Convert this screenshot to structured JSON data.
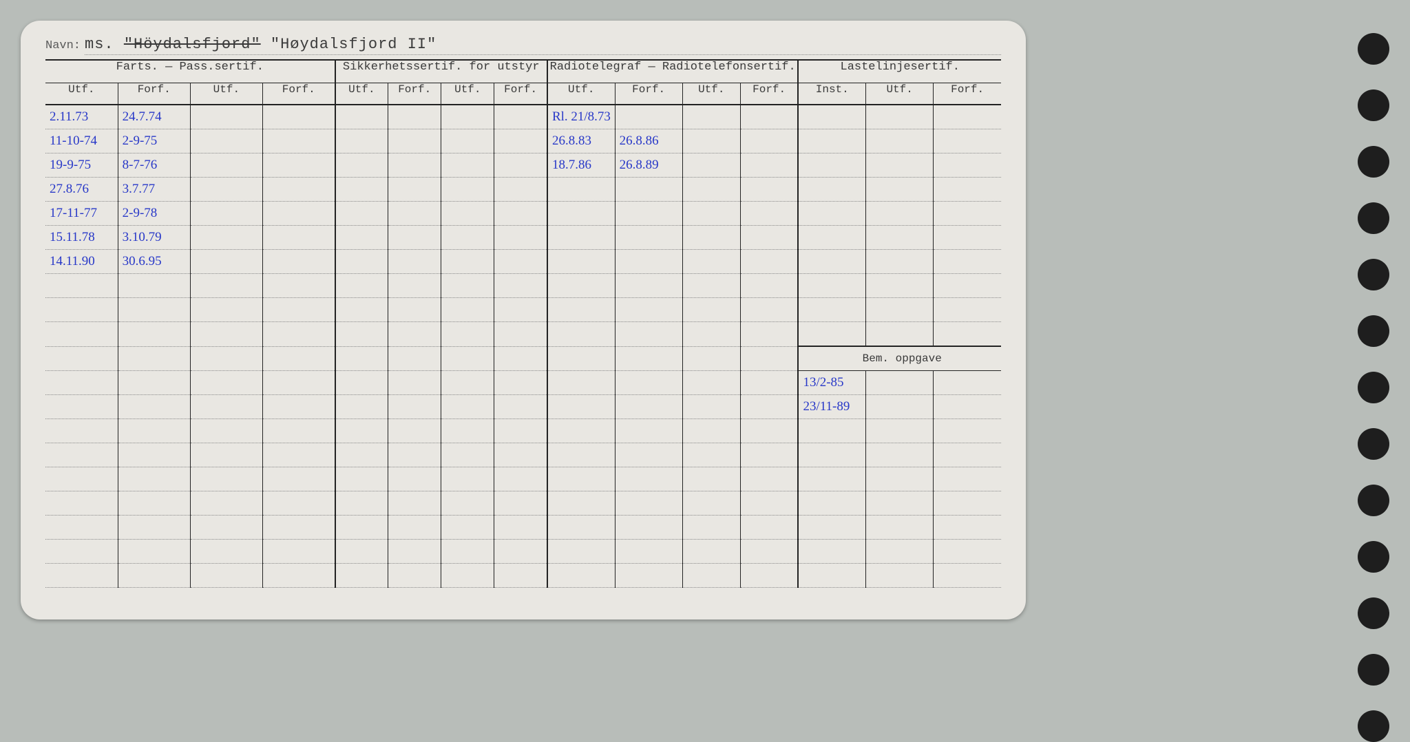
{
  "colors": {
    "page_bg": "#b8bdb9",
    "card_bg": "#e9e7e2",
    "line": "#222222",
    "dotted": "#888888",
    "print_text": "#3a3a3a",
    "ink_blue": "#2838c8",
    "hole": "#1e1e1e"
  },
  "navn": {
    "label": "Navn:",
    "prefix": "ms.",
    "struck": "\"Höydalsfjord\"",
    "value": "\"Høydalsfjord II\""
  },
  "sections": {
    "farts": "Farts. — Pass.sertif.",
    "sikker": "Sikkerhetssertif. for utstyr",
    "radio": "Radiotelegraf — Radiotelefonsertif.",
    "laste": "Lastelinjesertif.",
    "bem": "Bem. oppgave"
  },
  "cols": {
    "utf": "Utf.",
    "forf": "Forf.",
    "inst": "Inst."
  },
  "farts_rows": [
    {
      "utf": "2.11.73",
      "forf": "24.7.74"
    },
    {
      "utf": "11-10-74",
      "forf": "2-9-75"
    },
    {
      "utf": "19-9-75",
      "forf": "8-7-76"
    },
    {
      "utf": "27.8.76",
      "forf": "3.7.77"
    },
    {
      "utf": "17-11-77",
      "forf": "2-9-78"
    },
    {
      "utf": "15.11.78",
      "forf": "3.10.79"
    },
    {
      "utf": "14.11.90",
      "forf": "30.6.95"
    }
  ],
  "radio_rows": [
    {
      "utf": "Rl. 21/8.73",
      "forf": ""
    },
    {
      "utf": "26.8.83",
      "forf": "26.8.86"
    },
    {
      "utf": "18.7.86",
      "forf": "26.8.89"
    }
  ],
  "bem_rows": [
    "13/2-85",
    "23/11-89"
  ],
  "blank_rows": 14,
  "holes_count": 13
}
